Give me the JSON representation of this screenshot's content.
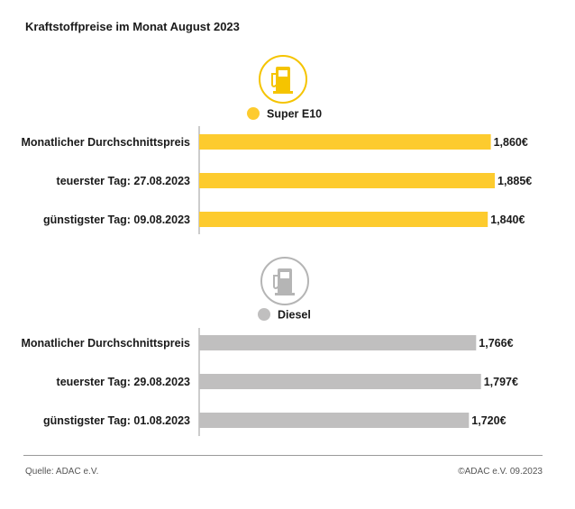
{
  "title": "Kraftstoffpreise im Monat August 2023",
  "source": "Quelle: ADAC e.V.",
  "copyright": "©ADAC e.V. 09.2023",
  "colors": {
    "super": "#fdcb2e",
    "diesel": "#c0bfbf",
    "super_icon": "#f5c400",
    "diesel_icon": "#b5b5b5"
  },
  "chart_data": [
    {
      "type": "bar",
      "orientation": "horizontal",
      "legend": "Super E10",
      "icon": "fuel-pump-icon",
      "categories": [
        "Monatlicher Durchschnittspreis",
        "teuerster Tag: 27.08.2023",
        "günstigster Tag: 09.08.2023"
      ],
      "values": [
        1.86,
        1.885,
        1.84
      ],
      "value_labels": [
        "1,860€",
        "1,885€",
        "1,840€"
      ],
      "xlim": [
        0,
        1.885
      ],
      "grid": false
    },
    {
      "type": "bar",
      "orientation": "horizontal",
      "legend": "Diesel",
      "icon": "fuel-pump-icon",
      "categories": [
        "Monatlicher Durchschnittspreis",
        "teuerster Tag: 29.08.2023",
        "günstigster Tag: 01.08.2023"
      ],
      "values": [
        1.766,
        1.797,
        1.72
      ],
      "value_labels": [
        "1,766€",
        "1,797€",
        "1,720€"
      ],
      "xlim": [
        0,
        1.885
      ],
      "grid": false
    }
  ]
}
